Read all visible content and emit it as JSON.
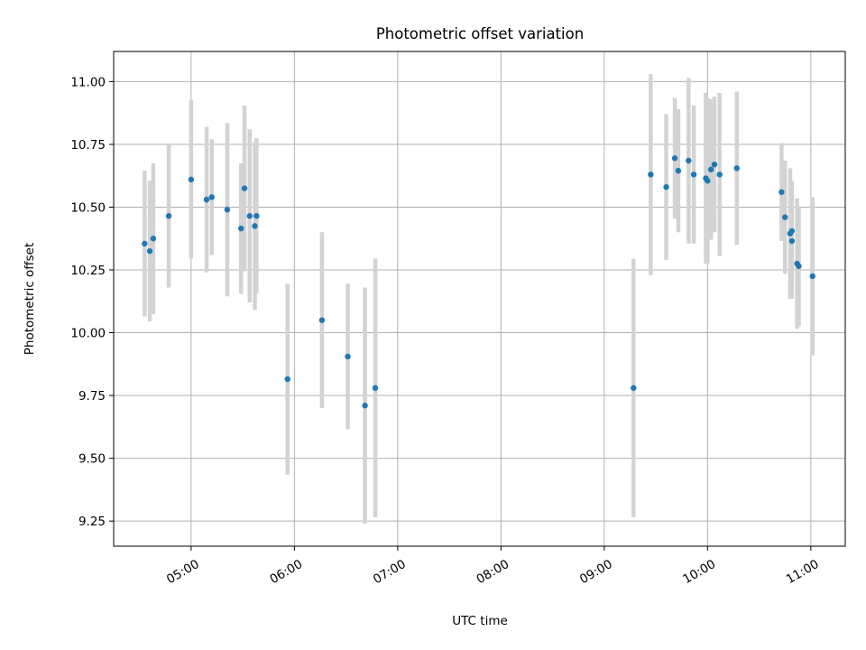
{
  "chart_data": {
    "type": "scatter",
    "title": "Photometric offset variation",
    "xlabel": "UTC time",
    "ylabel": "Photometric offset",
    "x_unit": "UTC hours",
    "xlim": [
      "04:15",
      "11:20"
    ],
    "ylim": [
      9.15,
      11.12
    ],
    "grid": true,
    "x_ticks": [
      "05:00",
      "06:00",
      "07:00",
      "08:00",
      "09:00",
      "10:00",
      "11:00"
    ],
    "y_ticks": [
      "9.25",
      "9.50",
      "9.75",
      "10.00",
      "10.25",
      "10.50",
      "10.75",
      "11.00"
    ],
    "x_tick_rotation": 30,
    "point_color": "#1f77b4",
    "errorbar_color": "#d3d3d3",
    "series": [
      {
        "points": [
          {
            "x": "04:33",
            "y": 10.355,
            "err": 0.29
          },
          {
            "x": "04:36",
            "y": 10.325,
            "err": 0.28
          },
          {
            "x": "04:38",
            "y": 10.375,
            "err": 0.3
          },
          {
            "x": "04:47",
            "y": 10.465,
            "err": 0.285
          },
          {
            "x": "05:00",
            "y": 10.61,
            "err": 0.315
          },
          {
            "x": "05:09",
            "y": 10.53,
            "err": 0.29
          },
          {
            "x": "05:12",
            "y": 10.54,
            "err": 0.23
          },
          {
            "x": "05:21",
            "y": 10.49,
            "err": 0.345
          },
          {
            "x": "05:29",
            "y": 10.415,
            "err": 0.26
          },
          {
            "x": "05:31",
            "y": 10.575,
            "err": 0.33
          },
          {
            "x": "05:34",
            "y": 10.465,
            "err": 0.345
          },
          {
            "x": "05:37",
            "y": 10.425,
            "err": 0.335
          },
          {
            "x": "05:38",
            "y": 10.465,
            "err": 0.31
          },
          {
            "x": "05:56",
            "y": 9.815,
            "err": 0.38
          },
          {
            "x": "06:16",
            "y": 10.05,
            "err": 0.35
          },
          {
            "x": "06:31",
            "y": 9.905,
            "err": 0.29
          },
          {
            "x": "06:41",
            "y": 9.71,
            "err": 0.47
          },
          {
            "x": "06:47",
            "y": 9.78,
            "err": 0.515
          },
          {
            "x": "09:17",
            "y": 9.78,
            "err": 0.515
          },
          {
            "x": "09:27",
            "y": 10.63,
            "err": 0.4
          },
          {
            "x": "09:36",
            "y": 10.58,
            "err": 0.29
          },
          {
            "x": "09:41",
            "y": 10.695,
            "err": 0.24
          },
          {
            "x": "09:43",
            "y": 10.645,
            "err": 0.245
          },
          {
            "x": "09:49",
            "y": 10.685,
            "err": 0.33
          },
          {
            "x": "09:52",
            "y": 10.63,
            "err": 0.275
          },
          {
            "x": "09:59",
            "y": 10.615,
            "err": 0.34
          },
          {
            "x": "10:00",
            "y": 10.605,
            "err": 0.33
          },
          {
            "x": "10:02",
            "y": 10.65,
            "err": 0.28
          },
          {
            "x": "10:04",
            "y": 10.67,
            "err": 0.27
          },
          {
            "x": "10:07",
            "y": 10.63,
            "err": 0.325
          },
          {
            "x": "10:17",
            "y": 10.655,
            "err": 0.305
          },
          {
            "x": "10:43",
            "y": 10.56,
            "err": 0.195
          },
          {
            "x": "10:45",
            "y": 10.46,
            "err": 0.225
          },
          {
            "x": "10:48",
            "y": 10.395,
            "err": 0.26
          },
          {
            "x": "10:49",
            "y": 10.405,
            "err": 0.2
          },
          {
            "x": "10:49",
            "y": 10.365,
            "err": 0.23
          },
          {
            "x": "10:52",
            "y": 10.275,
            "err": 0.26
          },
          {
            "x": "10:53",
            "y": 10.265,
            "err": 0.24
          },
          {
            "x": "11:01",
            "y": 10.225,
            "err": 0.315
          }
        ]
      }
    ]
  }
}
